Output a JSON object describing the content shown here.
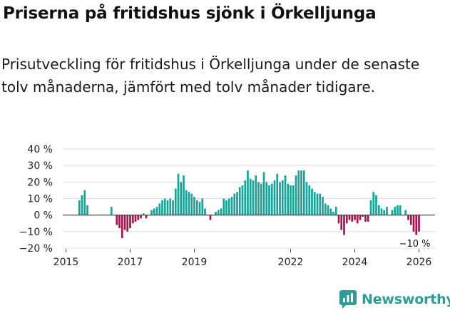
{
  "title": "Priserna på fritidshus sjönk i Örkelljunga",
  "subtitle": "Prisutveckling för fritidshus i Örkelljunga under de senaste tolv månaderna, jämfört med tolv månader tidigare.",
  "brand": {
    "name": "Newsworthy",
    "icon": "newsworthy-logo-icon",
    "color": "#2e9b98"
  },
  "colors": {
    "positive": "#17a39a",
    "negative": "#a3164f",
    "zero_line": "#333333",
    "grid": "#dddddd"
  },
  "chart_data": {
    "type": "bar",
    "title": "Priserna på fritidshus sjönk i Örkelljunga",
    "xlabel": "",
    "ylabel": "",
    "ylim": [
      -20,
      40
    ],
    "y_ticks": [
      -20,
      -10,
      0,
      10,
      20,
      30,
      40
    ],
    "y_tick_labels": [
      "−20 %",
      "−10 %",
      "0 %",
      "10 %",
      "20 %",
      "30 %",
      "40 %"
    ],
    "x_ticks": [
      2015,
      2017,
      2019,
      2022,
      2024,
      2026
    ],
    "x_tick_labels": [
      "2015",
      "2017",
      "2019",
      "2022",
      "2024",
      "2026"
    ],
    "x_domain": [
      2014.9,
      2026.5
    ],
    "bar_width_months": 0.72,
    "start_year": 2015,
    "start_month": 6,
    "values": [
      9,
      12,
      15,
      6,
      null,
      null,
      null,
      null,
      null,
      null,
      null,
      null,
      5,
      null,
      -6,
      -8,
      -14,
      -9,
      -10,
      -8,
      -5,
      -4,
      -3,
      -2,
      1,
      -2,
      null,
      3,
      4,
      5,
      7,
      9,
      10,
      9,
      10,
      9,
      16,
      25,
      20,
      24,
      15,
      14,
      13,
      11,
      9,
      8,
      10,
      4,
      null,
      -3,
      null,
      2,
      3,
      4,
      10,
      9,
      10,
      11,
      13,
      14,
      17,
      18,
      21,
      27,
      22,
      21,
      24,
      20,
      19,
      26,
      20,
      18,
      19,
      21,
      25,
      20,
      21,
      24,
      19,
      18,
      18,
      24,
      27,
      27,
      27,
      20,
      18,
      16,
      14,
      13,
      13,
      11,
      7,
      6,
      4,
      2,
      5,
      -5,
      -9,
      -12,
      -5,
      -3,
      -4,
      -3,
      -5,
      -3,
      -1,
      -4,
      -4,
      9,
      14,
      12,
      6,
      4,
      3,
      5,
      null,
      3,
      5,
      6,
      6,
      null,
      3,
      -3,
      -6,
      -10,
      -12,
      -10
    ],
    "annotations": [
      {
        "label": "−10 %",
        "value": -10,
        "series_index": 0
      }
    ]
  }
}
